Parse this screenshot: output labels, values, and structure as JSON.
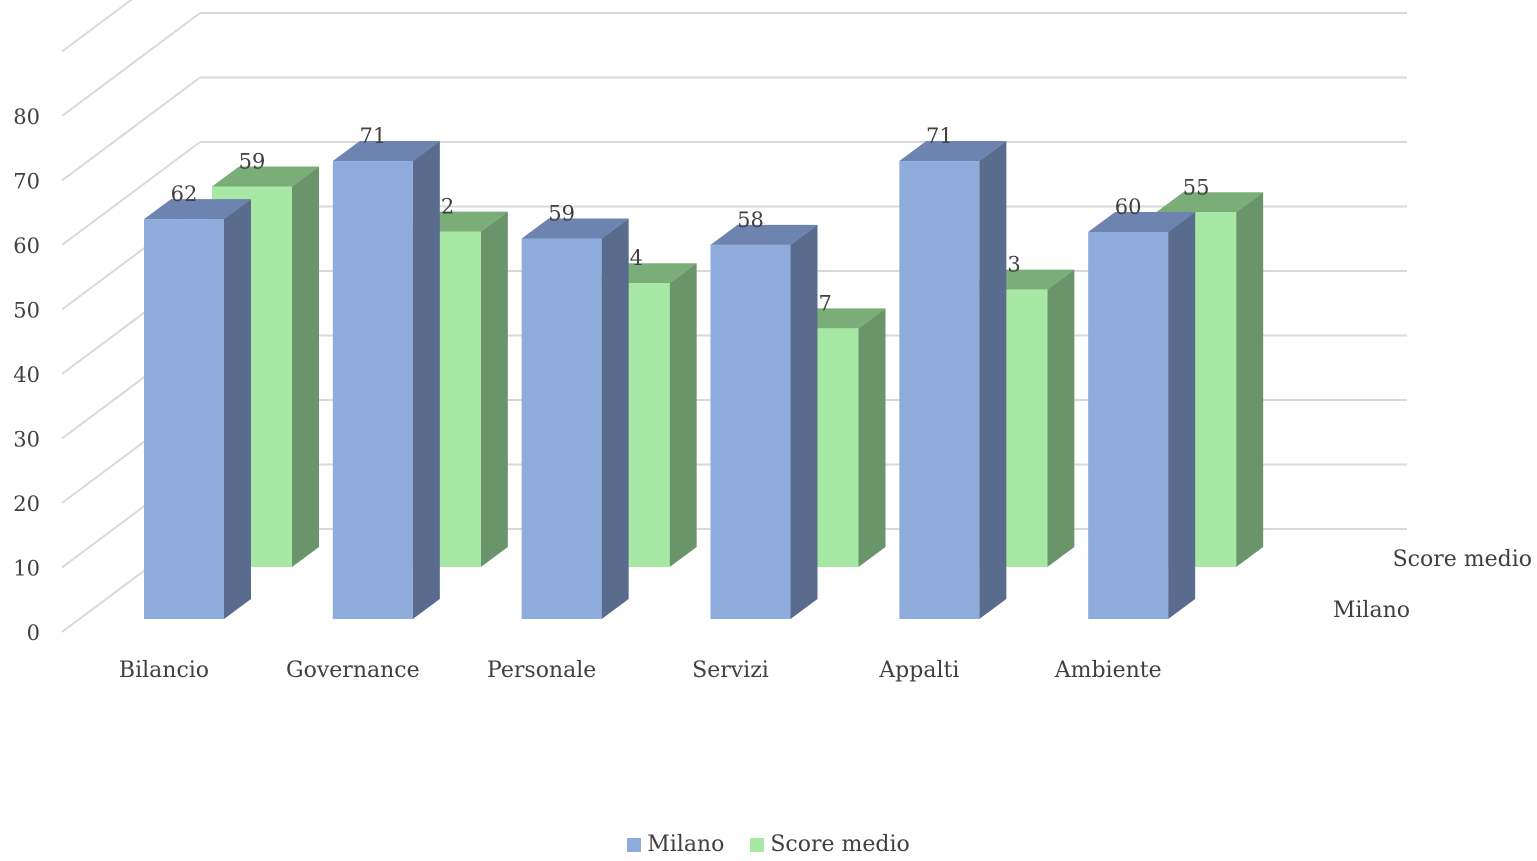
{
  "chart_data": {
    "type": "bar",
    "categories": [
      "Bilancio",
      "Governance",
      "Personale",
      "Servizi",
      "Appalti",
      "Ambiente"
    ],
    "series": [
      {
        "name": "Milano",
        "values": [
          62,
          71,
          59,
          58,
          71,
          60
        ],
        "color": "#8FABDC",
        "side_color": "#5A6C8D",
        "top_color": "#6D83B0"
      },
      {
        "name": "Score medio",
        "values": [
          59,
          52,
          44,
          37,
          43,
          55
        ],
        "color": "#A6E8A4",
        "side_color": "#6A9469",
        "top_color": "#7BAD79"
      }
    ],
    "y_ticks": [
      "0",
      "10",
      "20",
      "30",
      "40",
      "50",
      "60",
      "70",
      "80"
    ],
    "ylim": [
      0,
      80
    ],
    "depth_labels": [
      "Milano",
      "Score medio"
    ],
    "grid": true,
    "legend_position": "bottom",
    "data_labels": true
  }
}
